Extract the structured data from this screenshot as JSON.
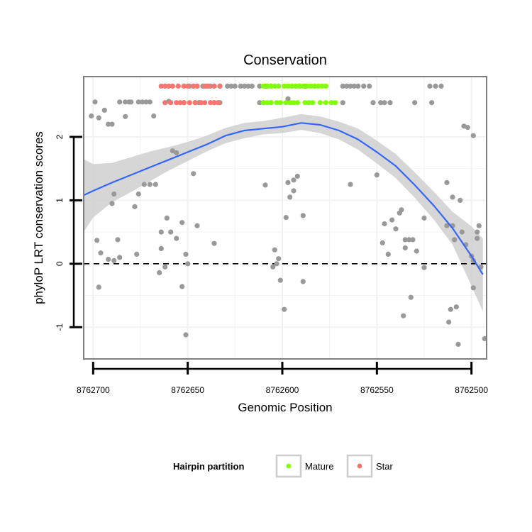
{
  "chart_data": {
    "type": "scatter",
    "title": "Conservation",
    "xlabel": "Genomic Position",
    "ylabel": "phyloP LRT conservation scores",
    "xlim": [
      8762705,
      8762492
    ],
    "ylim": [
      -1.5,
      2.95
    ],
    "x_reversed": true,
    "x_ticks": [
      8762700,
      8762650,
      8762600,
      8762550,
      8762500
    ],
    "x_tick_labels": [
      "8762700",
      "8762650",
      "8762600",
      "8762550",
      "8762500"
    ],
    "y_ticks": [
      -1,
      0,
      1,
      2
    ],
    "y_tick_labels": [
      "-1",
      "0",
      "1",
      "2"
    ],
    "grid": true,
    "reference_line": {
      "y": 0,
      "style": "dashed"
    },
    "colors": {
      "background": "#ffffff",
      "grid": "#f2f2f2",
      "points": "#999999",
      "Mature": "#7FFF00",
      "Star": "#F8766D",
      "smooth": "#3366FF",
      "ribbon": "#cccccc"
    },
    "legend": {
      "title": "Hairpin partition",
      "position": "bottom",
      "entries": [
        "Mature",
        "Star"
      ]
    },
    "series": [
      {
        "name": "Other",
        "points": [
          [
            8762699,
            2.55
          ],
          [
            8762701,
            2.33
          ],
          [
            8762697,
            2.3
          ],
          [
            8762694,
            2.42
          ],
          [
            8762692,
            2.2
          ],
          [
            8762690,
            2.2
          ],
          [
            8762686,
            2.55
          ],
          [
            8762683,
            2.55
          ],
          [
            8762681,
            2.55
          ],
          [
            8762680,
            2.55
          ],
          [
            8762683,
            2.32
          ],
          [
            8762676,
            2.55
          ],
          [
            8762672,
            2.55
          ],
          [
            8762670,
            2.55
          ],
          [
            8762668,
            2.33
          ],
          [
            8762660,
            2.56
          ],
          [
            8762674,
            2.55
          ],
          [
            8762696,
            0.17
          ],
          [
            8762698,
            0.37
          ],
          [
            8762692,
            0.07
          ],
          [
            8762689,
            0.05
          ],
          [
            8762689,
            1.1
          ],
          [
            8762687,
            0.38
          ],
          [
            8762686,
            0.1
          ],
          [
            8762690,
            0.95
          ],
          [
            8762678,
            0.9
          ],
          [
            8762676,
            1.1
          ],
          [
            8762673,
            1.25
          ],
          [
            8762670,
            1.25
          ],
          [
            8762667,
            1.25
          ],
          [
            8762677,
            0.15
          ],
          [
            8762697,
            -0.37
          ],
          [
            8762658,
            1.78
          ],
          [
            8762656,
            1.75
          ],
          [
            8762661,
            0.72
          ],
          [
            8762659,
            0.5
          ],
          [
            8762664,
            0.5
          ],
          [
            8762664,
            0.24
          ],
          [
            8762665,
            -0.14
          ],
          [
            8762662,
            -0.05
          ],
          [
            8762656,
            0.4
          ],
          [
            8762653,
            0.65
          ],
          [
            8762651,
            0.15
          ],
          [
            8762650,
            0.0
          ],
          [
            8762653,
            -0.36
          ],
          [
            8762651,
            -1.12
          ],
          [
            8762645,
            0.6
          ],
          [
            8762647,
            1.42
          ],
          [
            8762636,
            0.32
          ],
          [
            8762652,
            2.54
          ],
          [
            8762649,
            2.8
          ],
          [
            8762647,
            2.8
          ],
          [
            8762645,
            2.8
          ],
          [
            8762642,
            2.8
          ],
          [
            8762640,
            2.8
          ],
          [
            8762638,
            2.8
          ],
          [
            8762636,
            2.8
          ],
          [
            8762633,
            2.8
          ],
          [
            8762629,
            2.8
          ],
          [
            8762627,
            2.8
          ],
          [
            8762625,
            2.8
          ],
          [
            8762622,
            2.8
          ],
          [
            8762620,
            2.8
          ],
          [
            8762618,
            2.8
          ],
          [
            8762616,
            2.8
          ],
          [
            8762612,
            2.8
          ],
          [
            8762609,
            2.8
          ],
          [
            8762606,
            2.8
          ],
          [
            8762646,
            2.54
          ],
          [
            8762644,
            2.54
          ],
          [
            8762636,
            2.54
          ],
          [
            8762633,
            2.54
          ],
          [
            8762612,
            2.54
          ],
          [
            8762610,
            2.54
          ],
          [
            8762606,
            2.54
          ],
          [
            8762597,
            2.6
          ],
          [
            8762609,
            1.24
          ],
          [
            8762605,
            -0.05
          ],
          [
            8762603,
            0.0
          ],
          [
            8762604,
            0.22
          ],
          [
            8762602,
            0.08
          ],
          [
            8762601,
            -0.26
          ],
          [
            8762599,
            -0.72
          ],
          [
            8762598,
            0.73
          ],
          [
            8762596,
            1.05
          ],
          [
            8762594,
            1.15
          ],
          [
            8762594,
            1.32
          ],
          [
            8762592,
            1.38
          ],
          [
            8762597,
            1.28
          ],
          [
            8762589,
            0.76
          ],
          [
            8762589,
            -0.28
          ],
          [
            8762591,
            2.8
          ],
          [
            8762588,
            2.8
          ],
          [
            8762568,
            2.8
          ],
          [
            8762566,
            2.8
          ],
          [
            8762564,
            2.8
          ],
          [
            8762562,
            2.8
          ],
          [
            8762560,
            2.8
          ],
          [
            8762557,
            2.8
          ],
          [
            8762554,
            2.8
          ],
          [
            8762568,
            2.54
          ],
          [
            8762552,
            2.54
          ],
          [
            8762548,
            2.54
          ],
          [
            8762546,
            2.54
          ],
          [
            8762543,
            2.54
          ],
          [
            8762530,
            2.54
          ],
          [
            8762522,
            2.8
          ],
          [
            8762519,
            2.8
          ],
          [
            8762516,
            2.8
          ],
          [
            8762521,
            2.54
          ],
          [
            8762564,
            1.25
          ],
          [
            8762550,
            1.4
          ],
          [
            8762547,
            0.33
          ],
          [
            8762546,
            0.63
          ],
          [
            8762544,
            0.15
          ],
          [
            8762542,
            0.69
          ],
          [
            8762540,
            0.55
          ],
          [
            8762538,
            0.8
          ],
          [
            8762537,
            0.85
          ],
          [
            8762535,
            0.38
          ],
          [
            8762535,
            0.25
          ],
          [
            8762533,
            0.38
          ],
          [
            8762532,
            -0.53
          ],
          [
            8762531,
            0.38
          ],
          [
            8762529,
            0.2
          ],
          [
            8762536,
            -0.82
          ],
          [
            8762525,
            -0.06
          ],
          [
            8762525,
            0.72
          ],
          [
            8762513,
            1.28
          ],
          [
            8762510,
            1.05
          ],
          [
            8762509,
            0.38
          ],
          [
            8762510,
            0.6
          ],
          [
            8762511,
            -0.72
          ],
          [
            8762508,
            -0.68
          ],
          [
            8762507,
            -1.27
          ],
          [
            8762506,
            1.0
          ],
          [
            8762505,
            0.5
          ],
          [
            8762503,
            0.3
          ],
          [
            8762512,
            -0.92
          ],
          [
            8762500,
            0.12
          ],
          [
            8762499,
            -0.38
          ],
          [
            8762499,
            0.05
          ],
          [
            8762497,
            0.4
          ],
          [
            8762497,
            0.5
          ],
          [
            8762496,
            0.6
          ],
          [
            8762495,
            -0.05
          ],
          [
            8762493,
            -1.18
          ],
          [
            8762502,
            2.15
          ],
          [
            8762504,
            2.17
          ],
          [
            8762499,
            2.02
          ],
          [
            8762513,
            0.6
          ]
        ]
      },
      {
        "name": "Mature",
        "points": [
          [
            8762610,
            2.8
          ],
          [
            8762608,
            2.8
          ],
          [
            8762606,
            2.8
          ],
          [
            8762604,
            2.8
          ],
          [
            8762602,
            2.8
          ],
          [
            8762599,
            2.8
          ],
          [
            8762597,
            2.8
          ],
          [
            8762595,
            2.8
          ],
          [
            8762593,
            2.8
          ],
          [
            8762591,
            2.8
          ],
          [
            8762589,
            2.8
          ],
          [
            8762587,
            2.8
          ],
          [
            8762585,
            2.8
          ],
          [
            8762583,
            2.8
          ],
          [
            8762581,
            2.8
          ],
          [
            8762579,
            2.8
          ],
          [
            8762577,
            2.8
          ],
          [
            8762610,
            2.54
          ],
          [
            8762608,
            2.54
          ],
          [
            8762606,
            2.54
          ],
          [
            8762603,
            2.54
          ],
          [
            8762601,
            2.54
          ],
          [
            8762598,
            2.54
          ],
          [
            8762596,
            2.54
          ],
          [
            8762594,
            2.54
          ],
          [
            8762592,
            2.54
          ],
          [
            8762588,
            2.54
          ],
          [
            8762586,
            2.54
          ],
          [
            8762584,
            2.54
          ],
          [
            8762580,
            2.54
          ],
          [
            8762577,
            2.54
          ],
          [
            8762574,
            2.54
          ],
          [
            8762572,
            2.54
          ]
        ]
      },
      {
        "name": "Star",
        "points": [
          [
            8762664,
            2.8
          ],
          [
            8762662,
            2.8
          ],
          [
            8762660,
            2.8
          ],
          [
            8762658,
            2.8
          ],
          [
            8762655,
            2.8
          ],
          [
            8762652,
            2.8
          ],
          [
            8762650,
            2.8
          ],
          [
            8762647,
            2.8
          ],
          [
            8762645,
            2.8
          ],
          [
            8762641,
            2.8
          ],
          [
            8762639,
            2.8
          ],
          [
            8762636,
            2.8
          ],
          [
            8762633,
            2.8
          ],
          [
            8762662,
            2.54
          ],
          [
            8762659,
            2.54
          ],
          [
            8762656,
            2.54
          ],
          [
            8762654,
            2.54
          ],
          [
            8762652,
            2.54
          ],
          [
            8762649,
            2.54
          ],
          [
            8762646,
            2.54
          ],
          [
            8762643,
            2.54
          ],
          [
            8762641,
            2.54
          ],
          [
            8762638,
            2.54
          ],
          [
            8762636,
            2.54
          ],
          [
            8762634,
            2.54
          ]
        ]
      }
    ],
    "smooth": {
      "x": [
        8762705,
        8762700,
        8762690,
        8762680,
        8762670,
        8762660,
        8762650,
        8762640,
        8762630,
        8762620,
        8762610,
        8762600,
        8762590,
        8762580,
        8762570,
        8762560,
        8762550,
        8762540,
        8762530,
        8762520,
        8762510,
        8762500,
        8762494
      ],
      "y": [
        1.08,
        1.15,
        1.28,
        1.4,
        1.52,
        1.64,
        1.76,
        1.88,
        2.02,
        2.1,
        2.13,
        2.16,
        2.22,
        2.19,
        2.1,
        1.96,
        1.76,
        1.54,
        1.24,
        0.92,
        0.56,
        0.12,
        -0.17
      ],
      "lower": [
        0.5,
        0.73,
        0.97,
        1.13,
        1.3,
        1.47,
        1.62,
        1.77,
        1.9,
        1.98,
        2.04,
        2.06,
        2.11,
        2.06,
        1.96,
        1.8,
        1.58,
        1.35,
        1.04,
        0.7,
        0.3,
        -0.35,
        -0.75
      ],
      "upper": [
        1.65,
        1.57,
        1.59,
        1.68,
        1.77,
        1.84,
        1.92,
        2.02,
        2.14,
        2.22,
        2.25,
        2.3,
        2.36,
        2.32,
        2.24,
        2.13,
        1.94,
        1.73,
        1.44,
        1.14,
        0.82,
        0.59,
        0.4
      ]
    }
  }
}
